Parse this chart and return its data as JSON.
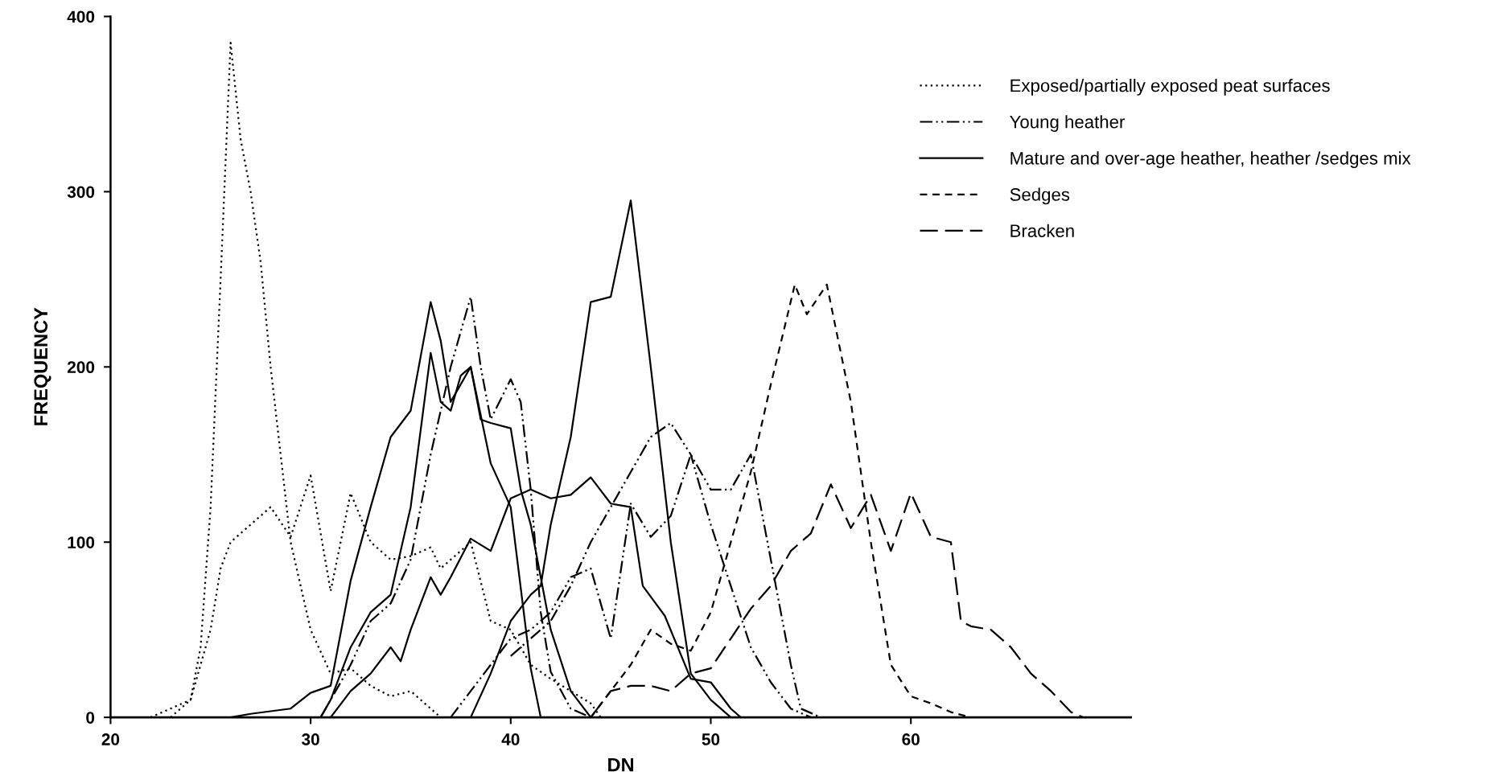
{
  "chart_data": {
    "type": "line",
    "xlabel": "DN",
    "ylabel": "FREQUENCY",
    "xlim": [
      20,
      71
    ],
    "xticks": [
      20,
      30,
      40,
      50,
      60
    ],
    "ylim": [
      0,
      400
    ],
    "yticks": [
      0,
      100,
      200,
      300,
      400
    ],
    "grid": false,
    "legend": "top right",
    "marker": "none",
    "series": [
      {
        "name": "Exposed/partially exposed peat surfaces",
        "color": "#000000",
        "line_style": "dotted",
        "x": [
          22,
          23,
          24,
          24.5,
          25,
          25.5,
          26,
          26.5,
          27,
          27.5,
          28,
          28.5,
          29,
          30,
          31,
          32,
          33,
          34,
          35,
          36,
          36.5
        ],
        "values": [
          0,
          5,
          10,
          40,
          120,
          250,
          385,
          330,
          300,
          260,
          200,
          150,
          100,
          50,
          25,
          28,
          18,
          12,
          15,
          5,
          0
        ]
      },
      {
        "color": "#000000",
        "line_style": "dotted",
        "x": [
          23,
          24,
          25,
          25.5,
          26,
          27,
          28,
          29,
          30,
          31,
          32,
          33,
          34,
          35,
          36,
          36.5,
          37,
          38,
          39,
          40,
          41,
          42,
          43,
          44,
          44.5
        ],
        "values": [
          0,
          10,
          50,
          85,
          100,
          110,
          120,
          103,
          138,
          72,
          128,
          100,
          90,
          92,
          97,
          85,
          90,
          100,
          55,
          50,
          30,
          22,
          15,
          8,
          0
        ]
      },
      {
        "name": "Young heather",
        "color": "#000000",
        "line_style": "dashdotdot",
        "x": [
          30.5,
          31,
          32,
          33,
          34,
          35,
          36,
          37,
          38,
          38.5,
          39,
          40,
          40.5,
          41,
          41.5,
          42,
          43,
          44
        ],
        "values": [
          0,
          10,
          30,
          55,
          65,
          90,
          150,
          200,
          240,
          200,
          170,
          193,
          180,
          130,
          60,
          26,
          5,
          0
        ]
      },
      {
        "color": "#000000",
        "line_style": "dashdotdot",
        "x": [
          37,
          38,
          39,
          40,
          41,
          42,
          43,
          44,
          45,
          46,
          47,
          48,
          49,
          50,
          51,
          52,
          53,
          54,
          54.5,
          55.5
        ],
        "values": [
          0,
          15,
          30,
          45,
          50,
          60,
          80,
          85,
          45,
          122,
          103,
          115,
          150,
          130,
          130,
          150,
          90,
          30,
          5,
          0
        ]
      },
      {
        "color": "#000000",
        "line_style": "dashdotdot",
        "x": [
          40,
          41,
          42,
          43,
          44,
          45,
          46,
          47,
          48,
          49,
          50,
          51,
          52,
          53,
          54,
          55
        ],
        "values": [
          35,
          45,
          55,
          75,
          100,
          120,
          140,
          160,
          168,
          150,
          110,
          75,
          40,
          20,
          5,
          0
        ]
      },
      {
        "name": "Mature and over-age heather, heather /sedges mix",
        "color": "#000000",
        "line_style": "solid",
        "x": [
          26,
          27,
          29,
          30,
          31,
          32,
          33,
          34,
          35,
          36,
          36.5,
          37,
          38,
          39,
          40,
          41,
          41.5
        ],
        "values": [
          0,
          2,
          5,
          14,
          18,
          78,
          120,
          160,
          175,
          237,
          215,
          180,
          200,
          145,
          120,
          28,
          0
        ]
      },
      {
        "color": "#000000",
        "line_style": "solid",
        "x": [
          30.5,
          31,
          32,
          33,
          34,
          35,
          36,
          36.5,
          37,
          37.5,
          38,
          38.5,
          39,
          40,
          40.5,
          41,
          42,
          43,
          44
        ],
        "values": [
          0,
          10,
          40,
          60,
          70,
          120,
          208,
          180,
          175,
          195,
          200,
          170,
          168,
          165,
          130,
          110,
          50,
          15,
          0
        ]
      },
      {
        "color": "#000000",
        "line_style": "solid",
        "x": [
          38,
          39,
          40,
          41,
          41.5,
          42,
          43,
          44,
          45,
          46,
          47,
          48,
          49,
          50,
          51
        ],
        "values": [
          0,
          25,
          55,
          70,
          75,
          110,
          160,
          237,
          240,
          295,
          200,
          100,
          25,
          10,
          0
        ]
      },
      {
        "color": "#000000",
        "line_style": "solid",
        "x": [
          31,
          32,
          33,
          34,
          34.5,
          35,
          36,
          36.5,
          37,
          38,
          39,
          40,
          41,
          42,
          43,
          44,
          45,
          46,
          46.6,
          47.7,
          49,
          50,
          51,
          51.5
        ],
        "values": [
          0,
          15,
          25,
          40,
          32,
          50,
          80,
          70,
          80,
          102,
          95,
          125,
          130,
          125,
          127,
          137,
          122,
          120,
          75,
          58,
          22,
          20,
          5,
          0
        ]
      },
      {
        "name": "Sedges",
        "color": "#000000",
        "line_style": "dashed",
        "x": [
          44,
          45,
          46,
          47,
          48,
          49,
          50,
          51,
          52,
          53,
          54.2,
          54.8,
          55.8,
          57,
          58,
          59,
          60,
          61,
          62,
          63
        ],
        "values": [
          0,
          15,
          30,
          50,
          42,
          38,
          60,
          100,
          140,
          190,
          247,
          230,
          247,
          180,
          100,
          30,
          12,
          8,
          3,
          0
        ]
      },
      {
        "name": "Bracken",
        "color": "#000000",
        "line_style": "longdash",
        "x": [
          44,
          45,
          46,
          47,
          48,
          49,
          50,
          51,
          52,
          53,
          54,
          55,
          56,
          57,
          58,
          59,
          60,
          61,
          62,
          62.5,
          63,
          64,
          65,
          66,
          67,
          68,
          68.6
        ],
        "values": [
          0,
          15,
          18,
          18,
          15,
          25,
          28,
          45,
          62,
          75,
          95,
          105,
          133,
          108,
          127,
          95,
          128,
          103,
          100,
          55,
          52,
          50,
          40,
          25,
          15,
          3,
          0
        ]
      }
    ]
  }
}
